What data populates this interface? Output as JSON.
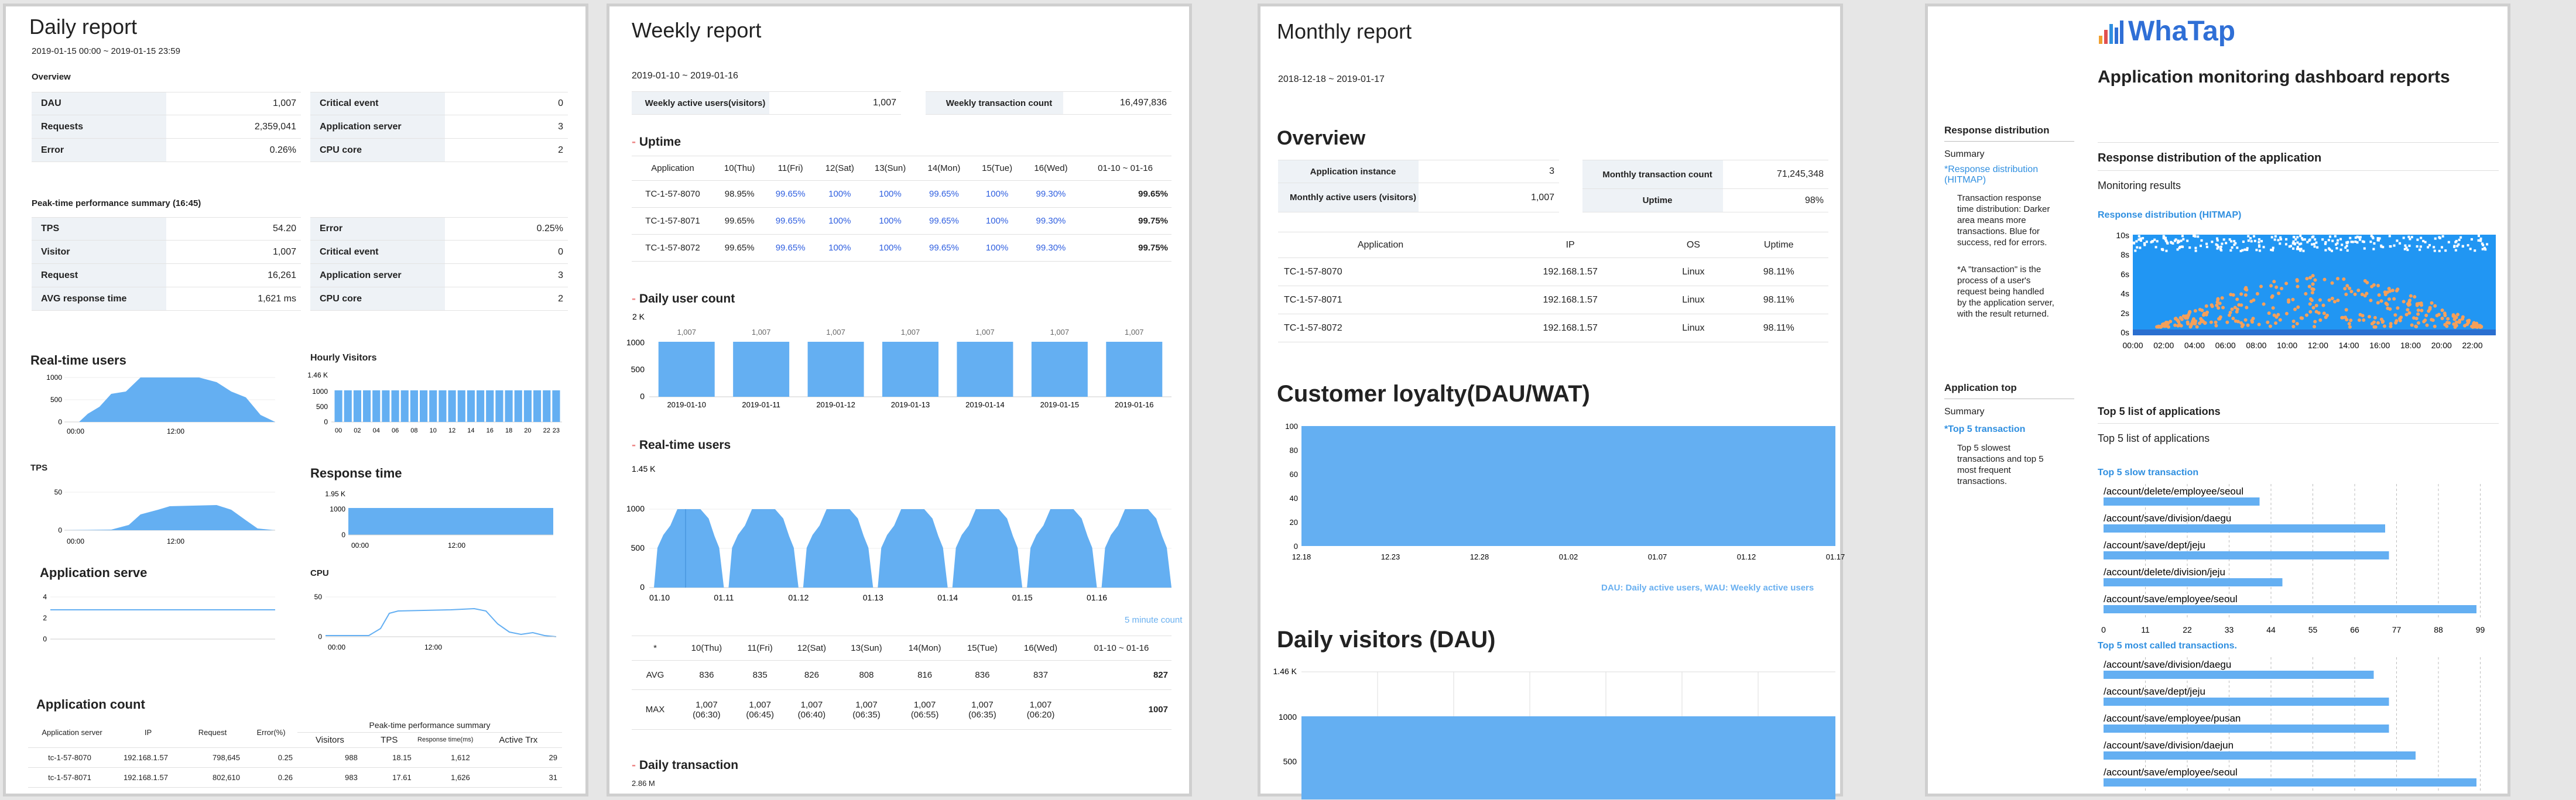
{
  "daily": {
    "title": "Daily report",
    "period": "2019-01-15 00:00 ~ 2019-01-15 23:59",
    "overview_title": "Overview",
    "overview_left": [
      {
        "k": "DAU",
        "v": "1,007"
      },
      {
        "k": "Requests",
        "v": "2,359,041"
      },
      {
        "k": "Error",
        "v": "0.26%"
      }
    ],
    "overview_right": [
      {
        "k": "Critical event",
        "v": "0"
      },
      {
        "k": "Application server",
        "v": "3"
      },
      {
        "k": "CPU core",
        "v": "2"
      }
    ],
    "peak_title": "Peak-time performance summary (16:45)",
    "peak_left": [
      {
        "k": "TPS",
        "v": "54.20"
      },
      {
        "k": "Visitor",
        "v": "1,007"
      },
      {
        "k": "Request",
        "v": "16,261"
      },
      {
        "k": "AVG response time",
        "v": "1,621 ms"
      }
    ],
    "peak_right": [
      {
        "k": "Error",
        "v": "0.25%"
      },
      {
        "k": "Critical event",
        "v": "0"
      },
      {
        "k": "Application server",
        "v": "3"
      },
      {
        "k": "CPU core",
        "v": "2"
      }
    ],
    "rt_users_title": "Real-time users",
    "rt_users_y": [
      "1000",
      "500",
      "0"
    ],
    "rt_users_x": [
      "00:00",
      "12:00"
    ],
    "hourly_title": "Hourly Visitors",
    "hourly_y": [
      "1.46 K",
      "1000",
      "500",
      "0"
    ],
    "hourly_x": [
      "00",
      "02",
      "04",
      "06",
      "08",
      "10",
      "12",
      "14",
      "16",
      "18",
      "20",
      "22",
      "23"
    ],
    "tps_title": "TPS",
    "tps_y": [
      "50",
      "0"
    ],
    "tps_x": [
      "00:00",
      "12:00"
    ],
    "resp_title": "Response time",
    "resp_y": [
      "1.95 K",
      "1000",
      "0"
    ],
    "resp_x": [
      "00:00",
      "12:00"
    ],
    "app_serve_title": "Application serve",
    "app_serve_y": [
      "4",
      "2",
      "0"
    ],
    "cpu_title": "CPU",
    "cpu_y": [
      "50",
      "0"
    ],
    "cpu_x": [
      "00:00",
      "12:00"
    ],
    "app_count_title": "Application count",
    "app_count_headers": [
      "Application server",
      "IP",
      "Request",
      "Error(%)"
    ],
    "peak_group": "Peak-time performance summary",
    "peak_sub": [
      "Visitors",
      "TPS",
      "Response time(ms)",
      "Active Trx"
    ],
    "app_rows": [
      [
        "tc-1-57-8070",
        "192.168.1.57",
        "798,645",
        "0.25",
        "988",
        "18.15",
        "1,612",
        "29"
      ],
      [
        "tc-1-57-8071",
        "192.168.1.57",
        "802,610",
        "0.26",
        "983",
        "17.61",
        "1,626",
        "31"
      ]
    ]
  },
  "weekly": {
    "title": "Weekly report",
    "period": "2019-01-10 ~ 2019-01-16",
    "kv": [
      {
        "k": "Weekly active users(visitors)",
        "v": "1,007"
      },
      {
        "k": "Weekly transaction count",
        "v": "16,497,836"
      }
    ],
    "uptime_title": "Uptime",
    "uptime_headers": [
      "Application",
      "10(Thu)",
      "11(Fri)",
      "12(Sat)",
      "13(Sun)",
      "14(Mon)",
      "15(Tue)",
      "16(Wed)",
      "01-10 ~ 01-16"
    ],
    "uptime_rows": [
      [
        "TC-1-57-8070",
        "98.95%",
        "99.65%",
        "100%",
        "100%",
        "99.65%",
        "100%",
        "99.30%",
        "99.65%"
      ],
      [
        "TC-1-57-8071",
        "99.65%",
        "99.65%",
        "100%",
        "100%",
        "99.65%",
        "100%",
        "99.30%",
        "99.75%"
      ],
      [
        "TC-1-57-8072",
        "99.65%",
        "99.65%",
        "100%",
        "100%",
        "99.65%",
        "100%",
        "99.30%",
        "99.75%"
      ]
    ],
    "duc_title": "Daily user count",
    "duc_y": [
      "2 K",
      "1000",
      "500",
      "0"
    ],
    "duc_labels": [
      "1,007",
      "1,007",
      "1,007",
      "1,007",
      "1,007",
      "1,007",
      "1,007"
    ],
    "duc_dates": [
      "2019-01-10",
      "2019-01-11",
      "2019-01-12",
      "2019-01-13",
      "2019-01-14",
      "2019-01-15",
      "2019-01-16"
    ],
    "rt_title": "Real-time users",
    "rt_y": [
      "1.45 K",
      "1000",
      "500",
      "0"
    ],
    "rt_x": [
      "01.10",
      "01.11",
      "01.12",
      "01.13",
      "01.14",
      "01.15",
      "01.16"
    ],
    "rt_note": "5 minute count",
    "stat_headers": [
      "*",
      "10(Thu)",
      "11(Fri)",
      "12(Sat)",
      "13(Sun)",
      "14(Mon)",
      "15(Tue)",
      "16(Wed)",
      "01-10 ~ 01-16"
    ],
    "avg_row": [
      "AVG",
      "836",
      "835",
      "826",
      "808",
      "816",
      "836",
      "837",
      "827"
    ],
    "max_row": [
      "MAX",
      "1,007",
      "1,007",
      "1,007",
      "1,007",
      "1,007",
      "1,007",
      "1,007",
      "1007"
    ],
    "max_times": [
      "",
      "(06:30)",
      "(06:45)",
      "(06:40)",
      "(06:35)",
      "(06:55)",
      "(06:35)",
      "(06:20)",
      ""
    ],
    "dt_title": "Daily transaction",
    "dt_y": "2.86 M"
  },
  "monthly": {
    "title": "Monthly report",
    "period": "2018-12-18 ~ 2019-01-17",
    "overview_title": "Overview",
    "kv_left": [
      {
        "k": "Application instance",
        "v": "3"
      },
      {
        "k": "Monthly active users (visitors)",
        "v": "1,007"
      }
    ],
    "kv_right": [
      {
        "k": "Monthly transaction count",
        "v": "71,245,348"
      },
      {
        "k": "Uptime",
        "v": "98%"
      }
    ],
    "app_headers": [
      "Application",
      "IP",
      "OS",
      "Uptime"
    ],
    "app_rows": [
      [
        "TC-1-57-8070",
        "192.168.1.57",
        "Linux",
        "98.11%"
      ],
      [
        "TC-1-57-8071",
        "192.168.1.57",
        "Linux",
        "98.11%"
      ],
      [
        "TC-1-57-8072",
        "192.168.1.57",
        "Linux",
        "98.11%"
      ]
    ],
    "loyalty_title": "Customer loyalty(DAU/WAT)",
    "loyalty_y": [
      "100",
      "80",
      "60",
      "40",
      "20",
      "0"
    ],
    "loyalty_x": [
      "12.18",
      "12.23",
      "12.28",
      "01.02",
      "01.07",
      "01.12",
      "01.17"
    ],
    "loyalty_note": "DAU: Daily active users, WAU: Weekly active users",
    "dau_title": "Daily visitors (DAU)",
    "dau_y": [
      "1.46 K",
      "1000",
      "500"
    ]
  },
  "whatap": {
    "logo": "WhaTap",
    "title": "Application monitoring dashboard reports",
    "side1_title": "Response distribution",
    "side1_summary": "Summary",
    "side1_link": "*Response distribution (HITMAP)",
    "side1_desc1": [
      "Transaction response",
      "time distribution: Darker",
      "area means more",
      "transactions. Blue for",
      "success, red for errors."
    ],
    "side1_desc2": [
      "*A \"transaction\" is the",
      "process of a user's",
      "request being handled",
      "by the application server,",
      "with the result returned."
    ],
    "main1_title": "Response distribution of the application",
    "main1_sub": "Monitoring results",
    "main1_link": "Response distribution (HITMAP)",
    "hitmap_y": [
      "10s",
      "8s",
      "6s",
      "4s",
      "2s",
      "0s"
    ],
    "hitmap_x": [
      "00:00",
      "02:00",
      "04:00",
      "06:00",
      "08:00",
      "10:00",
      "12:00",
      "14:00",
      "16:00",
      "18:00",
      "20:00",
      "22:00"
    ],
    "side2_title": "Application top",
    "side2_summary": "Summary",
    "side2_link": "*Top 5 transaction",
    "side2_desc": [
      "Top 5 slowest",
      "transactions and top 5",
      "most frequent",
      "transactions."
    ],
    "main2_title": "Top 5 list of applications",
    "main2_sub": "Top 5 list of applications",
    "slow_title": "Top 5 slow transaction",
    "slow_items": [
      {
        "label": "/account/delete/employee/seoul",
        "value": 41
      },
      {
        "label": "/account/save/division/daegu",
        "value": 74
      },
      {
        "label": "/account/save/dept/jeju",
        "value": 75
      },
      {
        "label": "/account/delete/division/jeju",
        "value": 47
      },
      {
        "label": "/account/save/employee/seoul",
        "value": 98
      }
    ],
    "slow_axis": [
      "0",
      "11",
      "22",
      "33",
      "44",
      "55",
      "66",
      "77",
      "88",
      "99"
    ],
    "called_title": "Top 5 most called transactions.",
    "called_items": [
      {
        "label": "/account/save/division/daegu",
        "value": 71
      },
      {
        "label": "/account/save/dept/jeju",
        "value": 75
      },
      {
        "label": "/account/save/employee/pusan",
        "value": 75
      },
      {
        "label": "/account/save/division/daejun",
        "value": 82
      },
      {
        "label": "/account/save/employee/seoul",
        "value": 98
      }
    ],
    "colors": {
      "logo_text": "#2f6fd6",
      "accent": "#2f8fe0",
      "bar": "#64aff2",
      "hitmap_bg": "#2196f3",
      "hitmap_dot": "#f5a05a"
    }
  }
}
